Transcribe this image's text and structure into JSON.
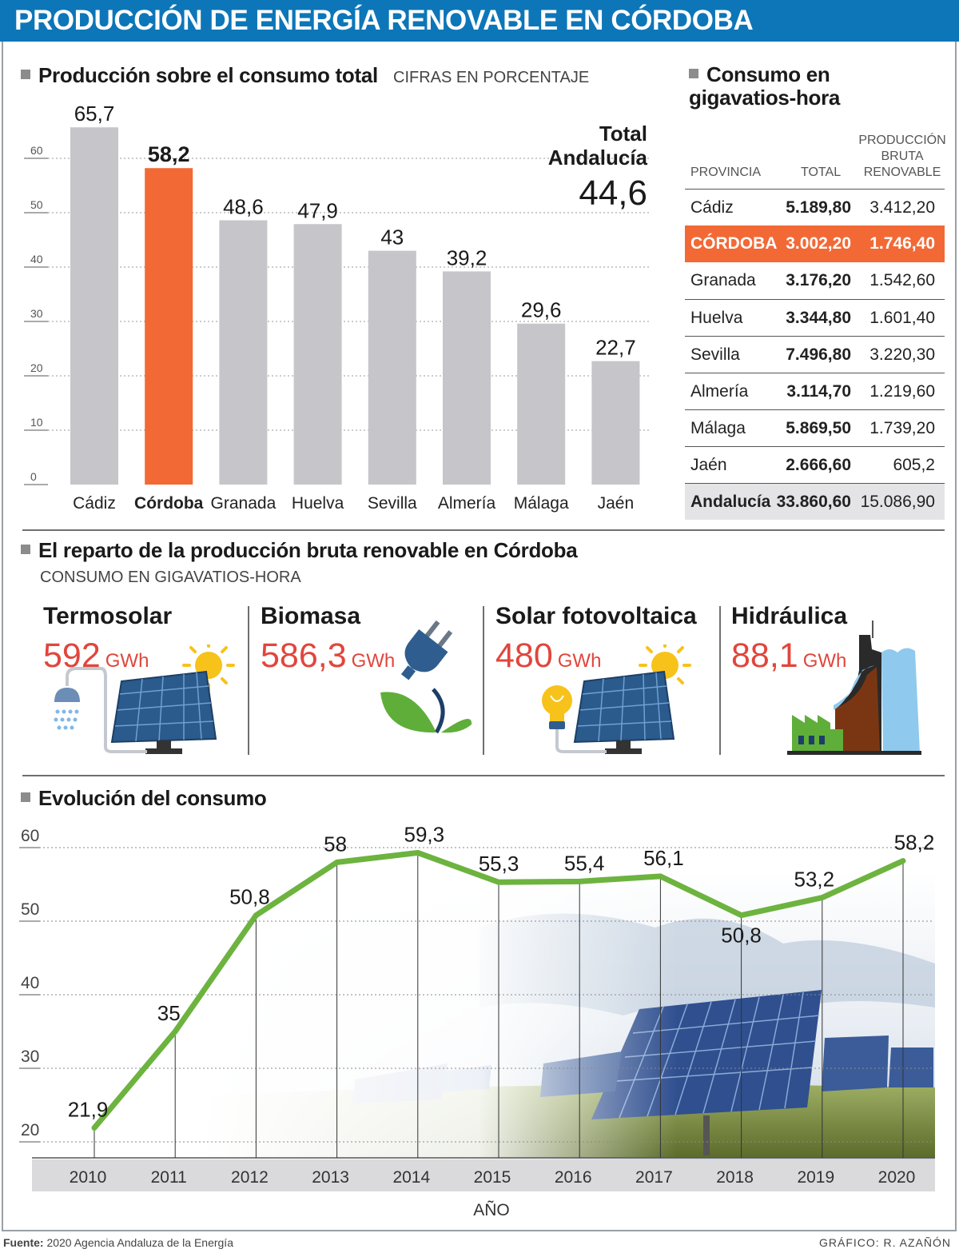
{
  "title": "PRODUCCIÓN DE ENERGÍA RENOVABLE EN CÓRDOBA",
  "section1": {
    "title": "Producción sobre el consumo total",
    "subtitle": "CIFRAS EN PORCENTAJE"
  },
  "section2": {
    "title": "Consumo en gigavatios-hora"
  },
  "section3": {
    "title": "El reparto de la producción bruta renovable en Córdoba",
    "subtitle": "CONSUMO EN GIGAVATIOS-HORA"
  },
  "section4": {
    "title": "Evolución del consumo"
  },
  "table": {
    "headers": [
      "PROVINCIA",
      "TOTAL",
      "PRODUCCIÓN BRUTA RENOVABLE"
    ],
    "rows": [
      [
        "Cádiz",
        "5.189,80",
        "3.412,20"
      ],
      [
        "CÓRDOBA",
        "3.002,20",
        "1.746,40"
      ],
      [
        "Granada",
        "3.176,20",
        "1.542,60"
      ],
      [
        "Huelva",
        "3.344,80",
        "1.601,40"
      ],
      [
        "Sevilla",
        "7.496,80",
        "3.220,30"
      ],
      [
        "Almería",
        "3.114,70",
        "1.219,60"
      ],
      [
        "Málaga",
        "5.869,50",
        "1.739,20"
      ],
      [
        "Jaén",
        "2.666,60",
        "605,2"
      ],
      [
        "Andalucía",
        "33.860,60",
        "15.086,90"
      ]
    ]
  },
  "renewables": [
    {
      "name": "Termosolar",
      "value": "592",
      "unit": "GWh",
      "icon": "solar-panel-shower-icon"
    },
    {
      "name": "Biomasa",
      "value": "586,3",
      "unit": "GWh",
      "icon": "plug-leaf-icon"
    },
    {
      "name": "Solar fotovoltaica",
      "value": "480",
      "unit": "GWh",
      "icon": "solar-panel-bulb-icon"
    },
    {
      "name": "Hidráulica",
      "value": "88,1",
      "unit": "GWh",
      "icon": "dam-factory-icon"
    }
  ],
  "chart_data": [
    {
      "type": "bar",
      "title": "Producción sobre el consumo total",
      "subtitle": "CIFRAS EN PORCENTAJE",
      "categories": [
        "Cádiz",
        "Córdoba",
        "Granada",
        "Huelva",
        "Sevilla",
        "Almería",
        "Málaga",
        "Jaén"
      ],
      "values": [
        65.7,
        58.2,
        48.6,
        47.9,
        43,
        39.2,
        29.6,
        22.7
      ],
      "value_labels": [
        "65,7",
        "58,2",
        "48,6",
        "47,9",
        "43",
        "39,2",
        "29,6",
        "22,7"
      ],
      "highlight": "Córdoba",
      "highlight_color": "#f26935",
      "bar_color": "#c5c5ca",
      "ylim": [
        0,
        70
      ],
      "yticks": [
        0,
        10,
        20,
        30,
        40,
        50,
        60
      ],
      "annotation": {
        "label_line1": "Total",
        "label_line2": "Andalucía",
        "value": "44,6"
      },
      "grid": true
    },
    {
      "type": "line",
      "title": "Evolución del consumo",
      "xlabel": "AÑO",
      "x": [
        "2010",
        "2011",
        "2012",
        "2013",
        "2014",
        "2015",
        "2016",
        "2017",
        "2018",
        "2019",
        "2020"
      ],
      "values": [
        21.9,
        35,
        50.8,
        58,
        59.3,
        55.3,
        55.4,
        56.1,
        50.8,
        53.2,
        58.2
      ],
      "value_labels": [
        "21,9",
        "35",
        "50,8",
        "58",
        "59,3",
        "55,3",
        "55,4",
        "56,1",
        "50,8",
        "53,2",
        "58,2"
      ],
      "line_color": "#6db33f",
      "ylim": [
        20,
        60
      ],
      "yticks": [
        20,
        30,
        40,
        50,
        60
      ],
      "grid": true
    }
  ],
  "footer": {
    "source_label": "Fuente:",
    "source_text": "2020 Agencia Andaluza de la Energía",
    "credit": "GRÁFICO: R. AZAÑÓN"
  }
}
